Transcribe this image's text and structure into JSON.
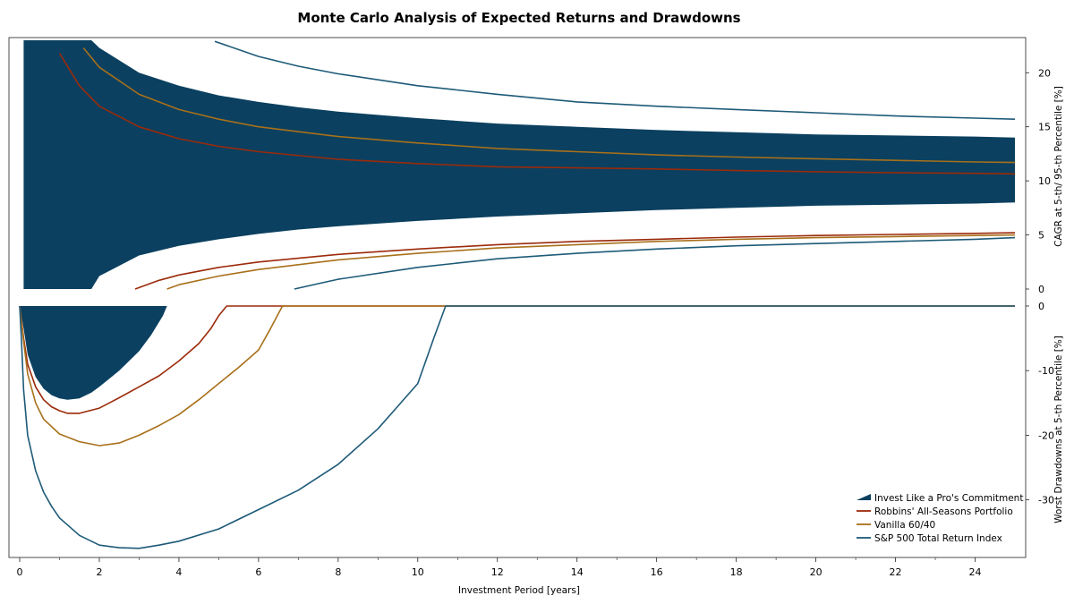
{
  "chart_data": {
    "type": "line",
    "title": "Monte Carlo Analysis of Expected Returns and Drawdowns",
    "xlabel": "Investment Period [years]",
    "xlim": [
      0,
      25
    ],
    "x_ticks": [
      "0",
      "2",
      "4",
      "6",
      "8",
      "10",
      "12",
      "14",
      "16",
      "18",
      "20",
      "22",
      "24"
    ],
    "colors": {
      "band": "#0b4060",
      "robbins": "#9b2a0a",
      "vanilla": "#a8701a",
      "sp500": "#1d5a78"
    },
    "legend": {
      "placement": "bottom-right",
      "entries": [
        {
          "key": "band",
          "label": "Invest Like a Pro's Commitment",
          "style": "area"
        },
        {
          "key": "robbins",
          "label": "Robbins' All-Seasons Portfolio",
          "style": "line"
        },
        {
          "key": "vanilla",
          "label": "Vanilla 60/40",
          "style": "line"
        },
        {
          "key": "sp500",
          "label": "S&P 500 Total Return Index",
          "style": "line"
        }
      ]
    },
    "panels": [
      {
        "id": "cagr",
        "ylabel": "CAGR at 5-th/ 95-th Percentile [%]",
        "ylim": [
          0,
          23
        ],
        "y_ticks": [
          "0",
          "5",
          "10",
          "15",
          "20"
        ],
        "band": {
          "name": "Invest Like a Pro's Commitment",
          "x": [
            0.1,
            0.5,
            1.0,
            1.5,
            1.8,
            2.0,
            3.0,
            4.0,
            5.0,
            6.0,
            7.0,
            8.0,
            10.0,
            12.0,
            14.0,
            16.0,
            18.0,
            20.0,
            22.0,
            24.0,
            25.0
          ],
          "upper": [
            23,
            23,
            23,
            23,
            23,
            22.3,
            20.0,
            18.8,
            17.9,
            17.3,
            16.8,
            16.4,
            15.8,
            15.3,
            15.0,
            14.7,
            14.5,
            14.3,
            14.2,
            14.1,
            14.0
          ],
          "lower": [
            0,
            0,
            0,
            0,
            0,
            1.2,
            3.1,
            4.0,
            4.6,
            5.1,
            5.5,
            5.8,
            6.3,
            6.7,
            7.0,
            7.3,
            7.5,
            7.7,
            7.8,
            7.9,
            8.0
          ]
        },
        "series": [
          {
            "name": "Robbins' All-Seasons Portfolio",
            "color_key": "robbins",
            "x": [
              1.0,
              1.5,
              2.0,
              3.0,
              4.0,
              5.0,
              6.0,
              8.0,
              10.0,
              12.0,
              14.0,
              16.0,
              18.0,
              20.0,
              22.0,
              24.0,
              25.0
            ],
            "y": [
              21.8,
              18.8,
              16.9,
              15.0,
              13.9,
              13.2,
              12.7,
              12.0,
              11.6,
              11.3,
              11.2,
              11.1,
              10.95,
              10.85,
              10.75,
              10.7,
              10.65
            ]
          },
          {
            "name": "Robbins' All-Seasons Portfolio",
            "color_key": "robbins",
            "x": [
              2.9,
              3.5,
              4.0,
              5.0,
              6.0,
              8.0,
              10.0,
              12.0,
              14.0,
              16.0,
              18.0,
              20.0,
              22.0,
              24.0,
              25.0
            ],
            "y": [
              0.0,
              0.8,
              1.3,
              2.0,
              2.5,
              3.2,
              3.7,
              4.1,
              4.4,
              4.6,
              4.8,
              4.95,
              5.05,
              5.15,
              5.2
            ]
          },
          {
            "name": "Vanilla 60/40",
            "color_key": "vanilla",
            "x": [
              1.6,
              2.0,
              3.0,
              4.0,
              5.0,
              6.0,
              8.0,
              10.0,
              12.0,
              14.0,
              16.0,
              18.0,
              20.0,
              22.0,
              24.0,
              25.0
            ],
            "y": [
              22.3,
              20.5,
              18.0,
              16.6,
              15.7,
              15.0,
              14.1,
              13.5,
              13.0,
              12.7,
              12.4,
              12.2,
              12.05,
              11.9,
              11.75,
              11.7
            ]
          },
          {
            "name": "Vanilla 60/40",
            "color_key": "vanilla",
            "x": [
              3.7,
              4.0,
              5.0,
              6.0,
              8.0,
              10.0,
              12.0,
              14.0,
              16.0,
              18.0,
              20.0,
              22.0,
              24.0,
              25.0
            ],
            "y": [
              0.0,
              0.4,
              1.2,
              1.8,
              2.7,
              3.3,
              3.8,
              4.1,
              4.4,
              4.6,
              4.75,
              4.85,
              4.95,
              5.0
            ]
          },
          {
            "name": "S&P 500 Total Return Index",
            "color_key": "sp500",
            "x": [
              4.9,
              6.0,
              7.0,
              8.0,
              10.0,
              12.0,
              14.0,
              16.0,
              18.0,
              20.0,
              22.0,
              24.0,
              25.0
            ],
            "y": [
              22.9,
              21.5,
              20.6,
              19.9,
              18.8,
              18.0,
              17.3,
              16.9,
              16.6,
              16.3,
              16.0,
              15.8,
              15.7
            ]
          },
          {
            "name": "S&P 500 Total Return Index",
            "color_key": "sp500",
            "x": [
              6.9,
              7.5,
              8.0,
              10.0,
              12.0,
              14.0,
              16.0,
              18.0,
              20.0,
              22.0,
              24.0,
              25.0
            ],
            "y": [
              0.0,
              0.5,
              0.9,
              2.0,
              2.8,
              3.3,
              3.7,
              4.0,
              4.2,
              4.4,
              4.6,
              4.75
            ]
          }
        ]
      },
      {
        "id": "drawdown",
        "ylabel": "Worst Drawdowns at 5-th Percentile [%]",
        "ylim": [
          -38.5,
          0
        ],
        "y_ticks": [
          "0",
          "-10",
          "-20",
          "-30"
        ],
        "band": {
          "name": "Invest Like a Pro's Commitment",
          "x": [
            0.0,
            0.1,
            0.2,
            0.4,
            0.6,
            0.8,
            1.0,
            1.2,
            1.5,
            1.8,
            2.0,
            2.5,
            3.0,
            3.3,
            3.6,
            3.7
          ],
          "upper": [
            0,
            0,
            0,
            0,
            0,
            0,
            0,
            0,
            0,
            0,
            0,
            0,
            0,
            0,
            0,
            0
          ],
          "lower": [
            0,
            -3.5,
            -7.5,
            -11.0,
            -12.8,
            -13.8,
            -14.3,
            -14.5,
            -14.3,
            -13.4,
            -12.5,
            -10.0,
            -7.0,
            -4.5,
            -1.5,
            0.0
          ]
        },
        "series": [
          {
            "name": "Robbins' All-Seasons Portfolio",
            "color_key": "robbins",
            "x": [
              0.0,
              0.1,
              0.2,
              0.4,
              0.6,
              0.8,
              1.0,
              1.2,
              1.5,
              2.0,
              2.5,
              3.0,
              3.5,
              4.0,
              4.5,
              4.8,
              5.0,
              5.2,
              25.0
            ],
            "y": [
              0.0,
              -5.0,
              -9.0,
              -12.5,
              -14.5,
              -15.6,
              -16.2,
              -16.6,
              -16.6,
              -15.8,
              -14.2,
              -12.5,
              -10.8,
              -8.5,
              -5.8,
              -3.5,
              -1.5,
              0.0,
              0.0
            ]
          },
          {
            "name": "Vanilla 60/40",
            "color_key": "vanilla",
            "x": [
              0.0,
              0.1,
              0.2,
              0.4,
              0.6,
              1.0,
              1.5,
              2.0,
              2.5,
              3.0,
              3.5,
              4.0,
              4.5,
              5.0,
              5.5,
              6.0,
              6.3,
              6.6,
              25.0
            ],
            "y": [
              0.0,
              -5.5,
              -10.5,
              -15.0,
              -17.5,
              -19.8,
              -21.0,
              -21.6,
              -21.2,
              -20.0,
              -18.5,
              -16.8,
              -14.5,
              -12.0,
              -9.5,
              -6.8,
              -3.5,
              0.0,
              0.0
            ]
          },
          {
            "name": "S&P 500 Total Return Index",
            "color_key": "sp500",
            "x": [
              0.0,
              0.05,
              0.1,
              0.2,
              0.4,
              0.6,
              0.8,
              1.0,
              1.5,
              2.0,
              2.5,
              3.0,
              3.5,
              4.0,
              5.0,
              6.0,
              7.0,
              8.0,
              9.0,
              9.5,
              10.0,
              10.4,
              10.7,
              25.0
            ],
            "y": [
              0.0,
              -6.0,
              -13.0,
              -20.0,
              -25.5,
              -28.8,
              -31.0,
              -32.8,
              -35.5,
              -37.0,
              -37.4,
              -37.5,
              -37.0,
              -36.4,
              -34.5,
              -31.5,
              -28.5,
              -24.5,
              -19.0,
              -15.5,
              -12.0,
              -5.0,
              0.0,
              0.0
            ]
          }
        ]
      }
    ]
  }
}
